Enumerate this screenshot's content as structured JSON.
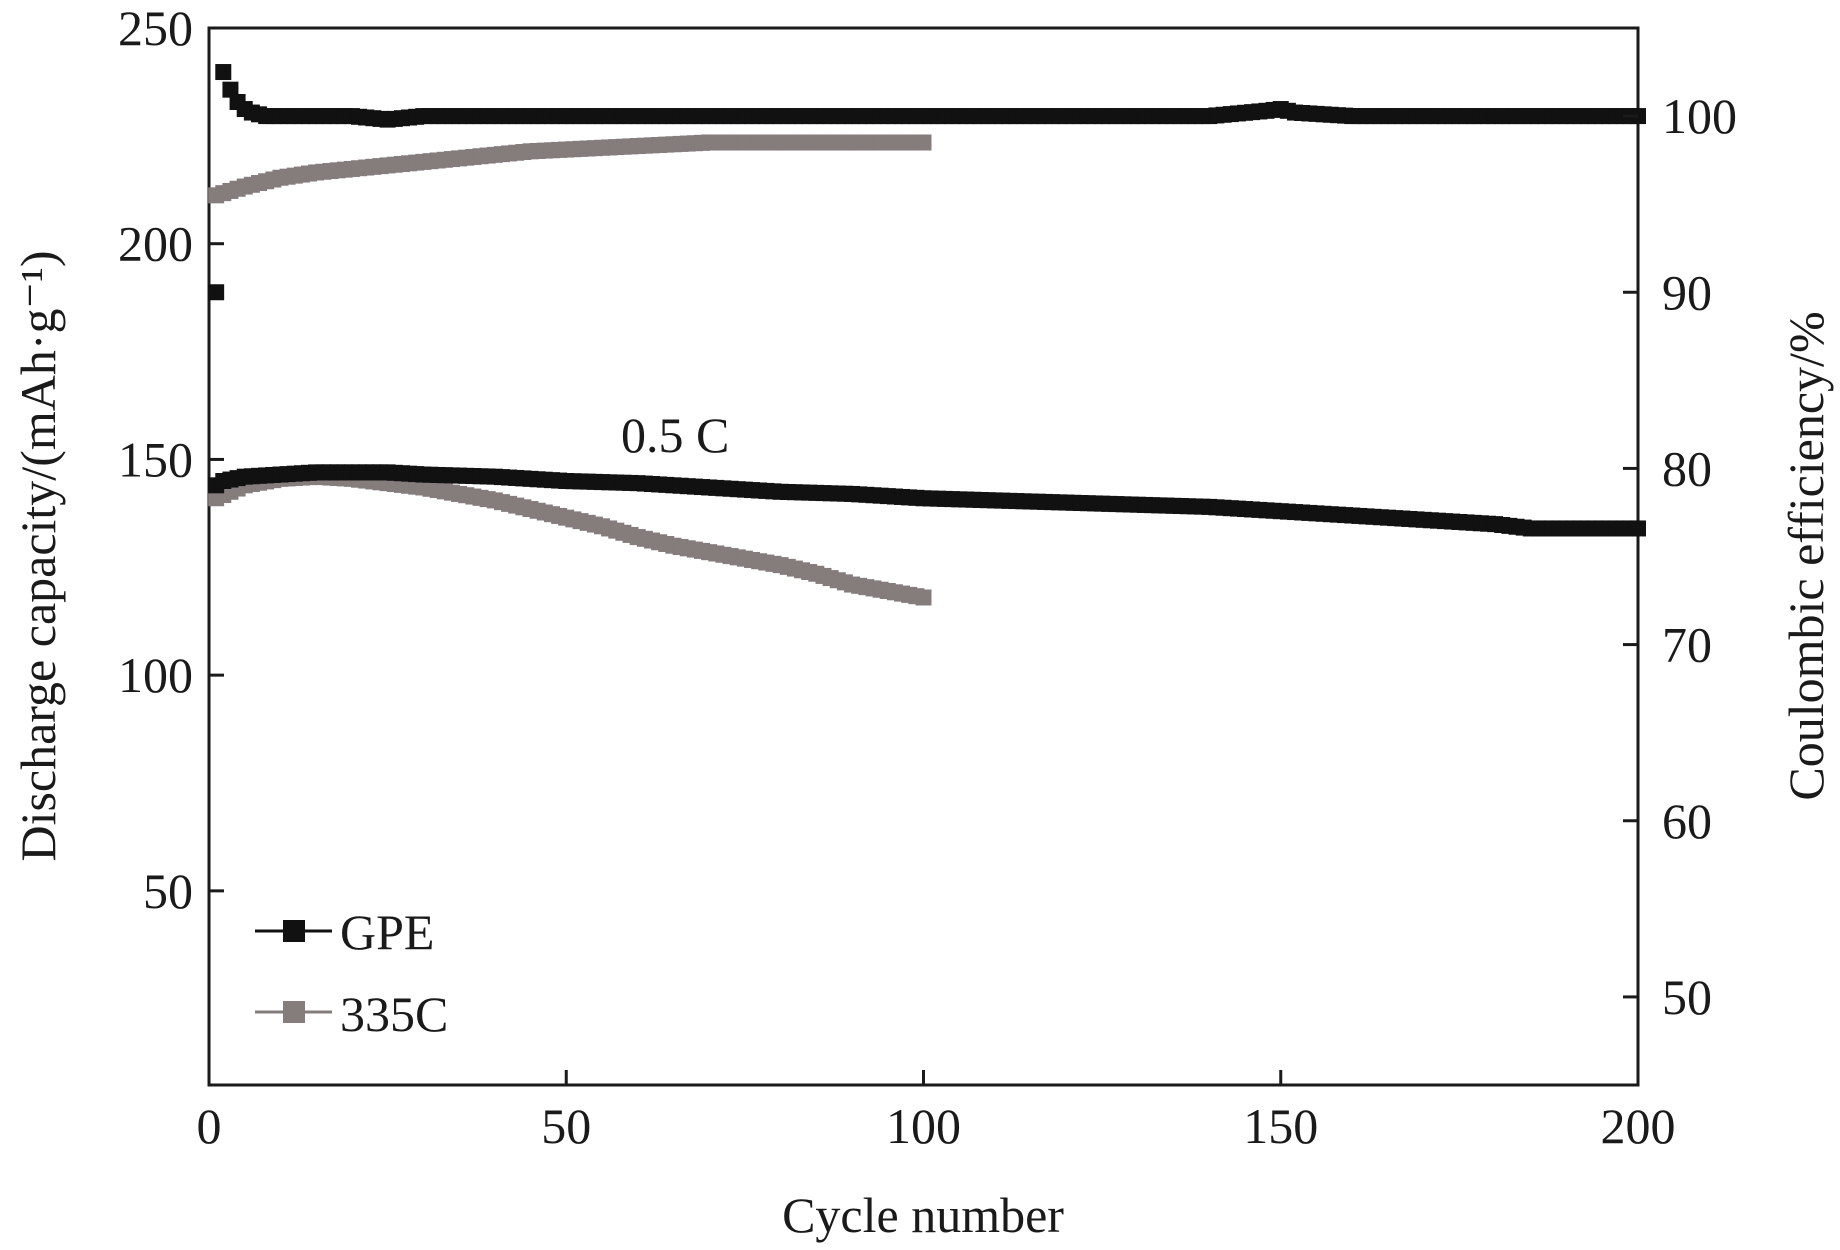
{
  "chart_data": {
    "type": "scatter",
    "title": "",
    "xlabel": "Cycle number",
    "ylabel_left": "Discharge capacity/(mAh·g⁻¹)",
    "ylabel_right": "Coulombic efficiency/%",
    "xlim": [
      0,
      200
    ],
    "ylim_left": [
      5,
      250
    ],
    "ylim_right": [
      45,
      105
    ],
    "x_ticks": [
      "0",
      "50",
      "100",
      "150",
      "200"
    ],
    "y_left_ticks": [
      "50",
      "100",
      "150",
      "200",
      "250"
    ],
    "y_right_ticks": [
      "50",
      "60",
      "70",
      "80",
      "90",
      "100"
    ],
    "grid": false,
    "legend_position": "bottom-left",
    "annotation": "0.5 C",
    "colors": {
      "GPE": "#111111",
      "335C": "#857c7c"
    },
    "series": [
      {
        "name": "GPE",
        "quantity": "Discharge capacity",
        "axis": "left",
        "x": [
          1,
          2,
          5,
          10,
          15,
          20,
          25,
          30,
          40,
          50,
          60,
          70,
          80,
          90,
          100,
          110,
          120,
          130,
          140,
          150,
          160,
          170,
          180,
          185,
          190,
          200
        ],
        "y": [
          144,
          145,
          146,
          146.5,
          147,
          147,
          147,
          146.5,
          146,
          145,
          144.5,
          143.5,
          142.5,
          142,
          141,
          140.5,
          140,
          139.5,
          139,
          138,
          137,
          136,
          135,
          134,
          134,
          134
        ]
      },
      {
        "name": "GPE",
        "quantity": "Coulombic efficiency",
        "axis": "right",
        "x": [
          1,
          2,
          3,
          4,
          5,
          6,
          8,
          10,
          15,
          20,
          25,
          30,
          40,
          50,
          60,
          70,
          80,
          90,
          100,
          110,
          120,
          130,
          140,
          148,
          150,
          152,
          160,
          170,
          180,
          190,
          200
        ],
        "y": [
          90,
          102.5,
          101.5,
          100.8,
          100.4,
          100.2,
          100,
          100,
          100,
          100,
          99.8,
          100,
          100,
          100,
          100,
          100,
          100,
          100,
          100,
          100,
          100,
          100,
          100,
          100.3,
          100.4,
          100.2,
          100,
          100,
          100,
          100,
          100
        ]
      },
      {
        "name": "335C",
        "quantity": "Discharge capacity",
        "axis": "left",
        "x": [
          1,
          5,
          10,
          15,
          20,
          25,
          30,
          35,
          40,
          45,
          50,
          55,
          60,
          65,
          70,
          75,
          80,
          85,
          90,
          95,
          100
        ],
        "y": [
          141,
          144,
          145.5,
          146,
          145.5,
          144.5,
          143.5,
          142,
          140.5,
          138.5,
          136.5,
          134.5,
          132,
          130,
          128.5,
          127,
          125.5,
          123.5,
          121,
          119.5,
          118
        ]
      },
      {
        "name": "335C",
        "quantity": "Coulombic efficiency",
        "axis": "right",
        "x": [
          1,
          5,
          10,
          15,
          20,
          25,
          30,
          35,
          40,
          45,
          50,
          55,
          60,
          65,
          70,
          75,
          80,
          85,
          90,
          95,
          100
        ],
        "y": [
          95.5,
          96,
          96.5,
          96.8,
          97,
          97.2,
          97.4,
          97.6,
          97.8,
          98,
          98.1,
          98.2,
          98.3,
          98.4,
          98.5,
          98.5,
          98.5,
          98.5,
          98.5,
          98.5,
          98.5
        ]
      }
    ]
  }
}
